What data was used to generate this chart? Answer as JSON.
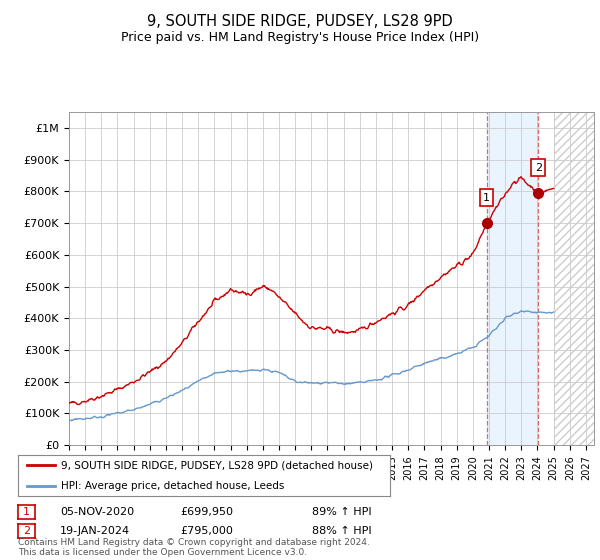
{
  "title": "9, SOUTH SIDE RIDGE, PUDSEY, LS28 9PD",
  "subtitle": "Price paid vs. HM Land Registry's House Price Index (HPI)",
  "title_fontsize": 10.5,
  "subtitle_fontsize": 9,
  "ylim": [
    0,
    1050000
  ],
  "yticks": [
    0,
    100000,
    200000,
    300000,
    400000,
    500000,
    600000,
    700000,
    800000,
    900000,
    1000000
  ],
  "ytick_labels": [
    "£0",
    "£100K",
    "£200K",
    "£300K",
    "£400K",
    "£500K",
    "£600K",
    "£700K",
    "£800K",
    "£900K",
    "£1M"
  ],
  "xlim_start": 1995.0,
  "xlim_end": 2027.5,
  "background_color": "#ffffff",
  "grid_color": "#cccccc",
  "shade_start": 2020.85,
  "shade_end": 2024.05,
  "hatch_start": 2025.0,
  "shade_color": "#ddeeff",
  "red_line_color": "#cc0000",
  "blue_line_color": "#6699cc",
  "sale1_x": 2020.85,
  "sale1_y": 699950,
  "sale2_x": 2024.05,
  "sale2_y": 795000,
  "sale1_date": "05-NOV-2020",
  "sale1_price": "£699,950",
  "sale1_hpi": "89% ↑ HPI",
  "sale2_date": "19-JAN-2024",
  "sale2_price": "£795,000",
  "sale2_hpi": "88% ↑ HPI",
  "legend_line1": "9, SOUTH SIDE RIDGE, PUDSEY, LS28 9PD (detached house)",
  "legend_line2": "HPI: Average price, detached house, Leeds",
  "footnote": "Contains HM Land Registry data © Crown copyright and database right 2024.\nThis data is licensed under the Open Government Licence v3.0."
}
